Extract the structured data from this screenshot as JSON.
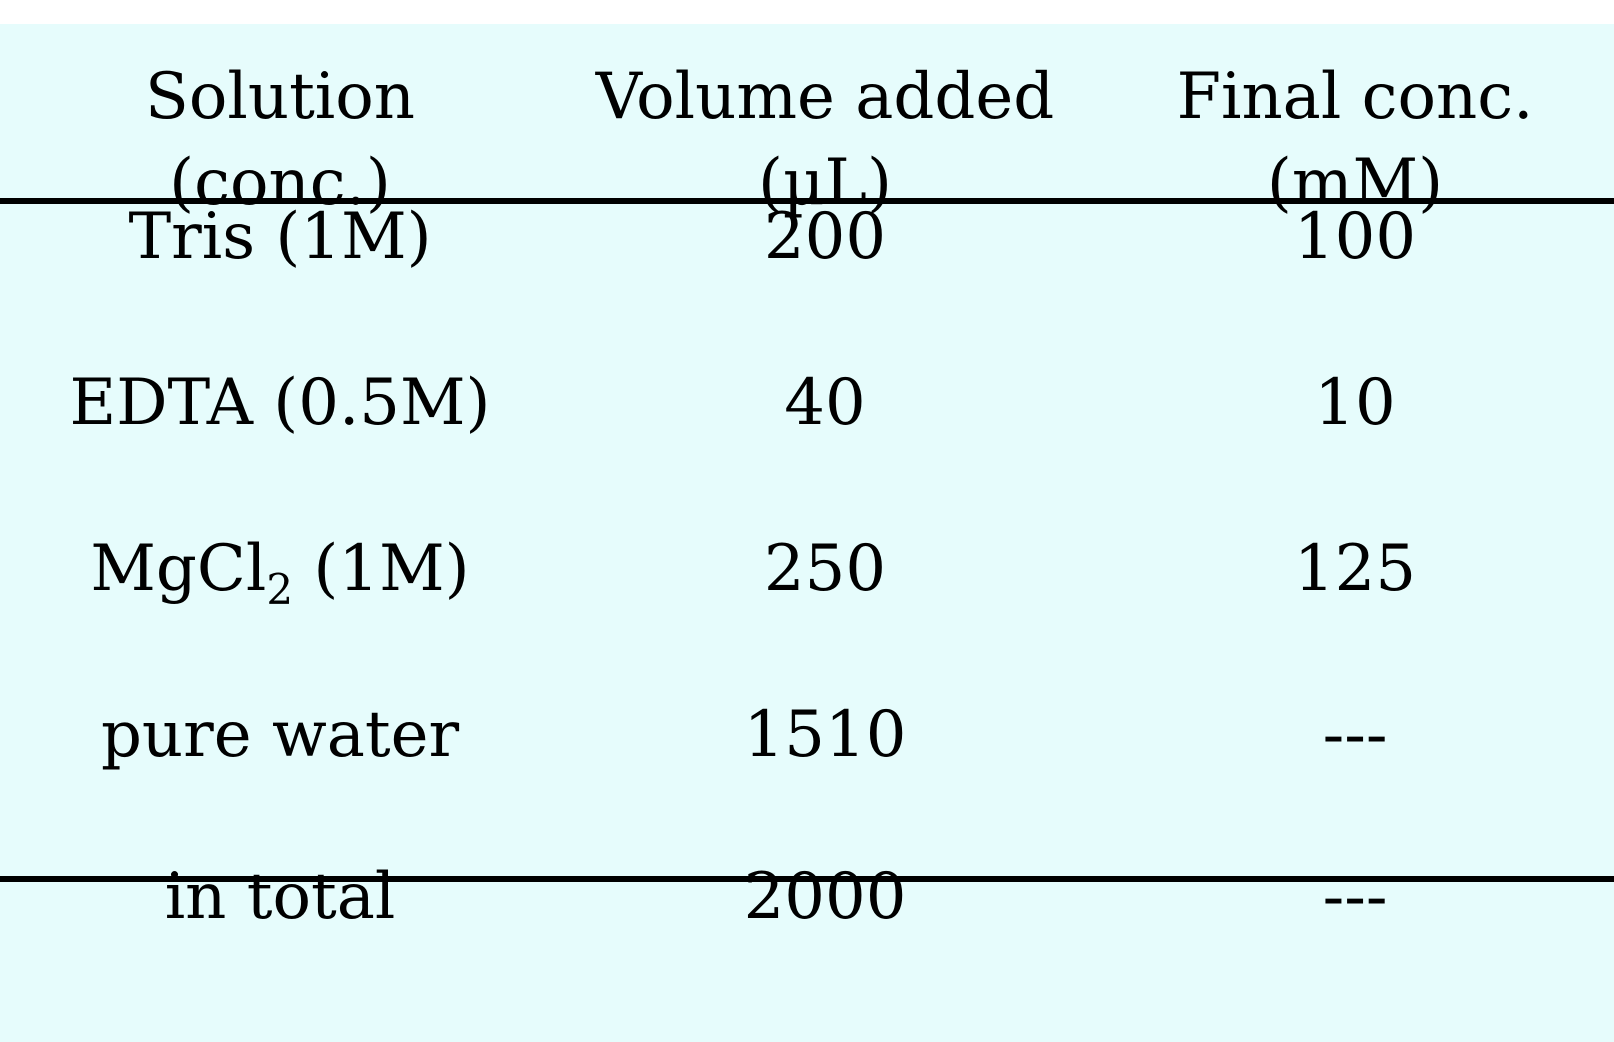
{
  "table": {
    "headers": [
      {
        "line1": "Solution",
        "line2": "(conc.)"
      },
      {
        "line1": "Volume added",
        "line2": "(µL)"
      },
      {
        "line1": "Final conc.",
        "line2": "(mM)"
      }
    ],
    "rows": [
      {
        "solution": "Tris (1M)",
        "volume": "200",
        "final": "100"
      },
      {
        "solution": "EDTA (0.5M)",
        "volume": "40",
        "final": "10"
      },
      {
        "solution_prefix": "MgCl",
        "solution_sub": "2",
        "solution_suffix": " (1M)",
        "volume": "250",
        "final": "125"
      },
      {
        "solution": "pure water",
        "volume": "1510",
        "final": "---"
      }
    ],
    "total": {
      "solution": "in total",
      "volume": "2000",
      "final": "---"
    }
  }
}
